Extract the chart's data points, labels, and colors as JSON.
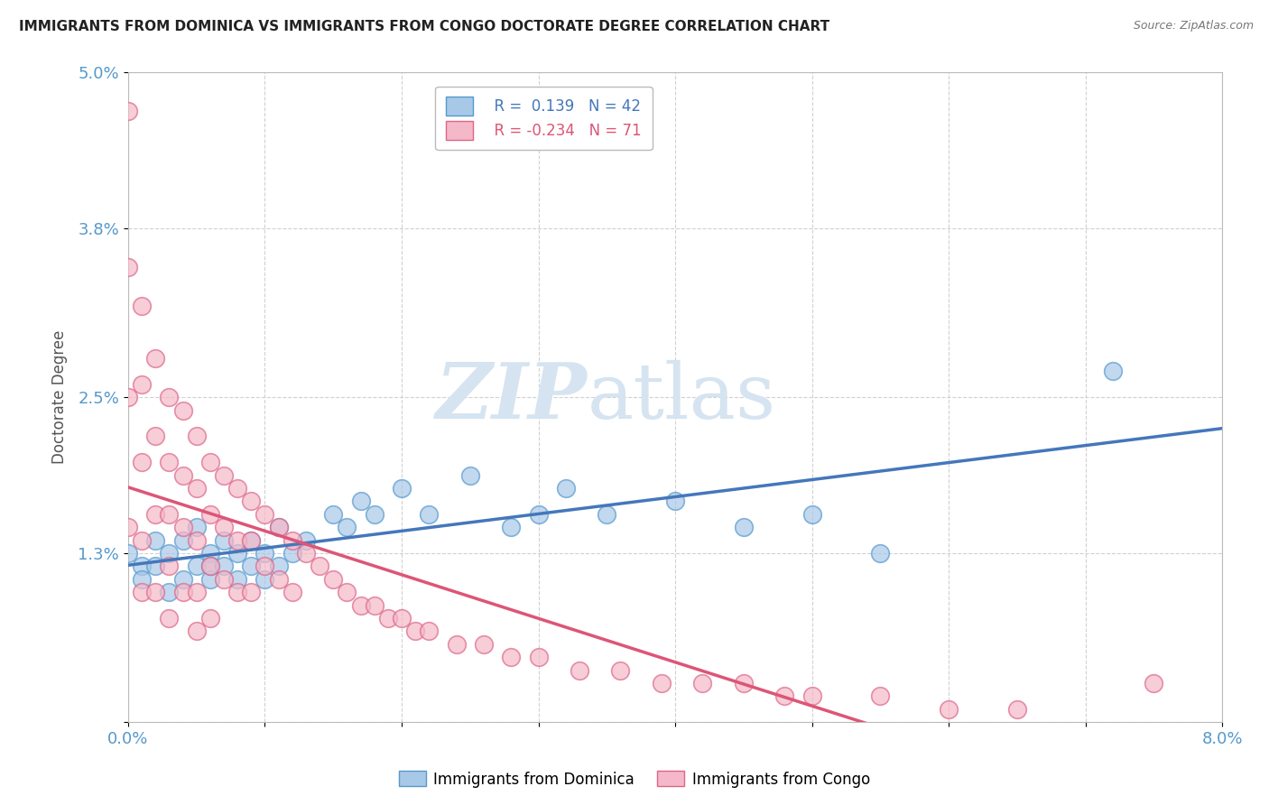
{
  "title": "IMMIGRANTS FROM DOMINICA VS IMMIGRANTS FROM CONGO DOCTORATE DEGREE CORRELATION CHART",
  "source": "Source: ZipAtlas.com",
  "ylabel": "Doctorate Degree",
  "xlim": [
    0.0,
    0.08
  ],
  "ylim": [
    0.0,
    0.05
  ],
  "ytick_vals": [
    0.0,
    0.013,
    0.025,
    0.038,
    0.05
  ],
  "ytick_labels": [
    "",
    "1.3%",
    "2.5%",
    "3.8%",
    "5.0%"
  ],
  "xtick_positions": [
    0.0,
    0.01,
    0.02,
    0.03,
    0.04,
    0.05,
    0.06,
    0.07,
    0.08
  ],
  "xtick_labels": [
    "0.0%",
    "",
    "",
    "",
    "",
    "",
    "",
    "",
    "8.0%"
  ],
  "dominica_R": 0.139,
  "dominica_N": 42,
  "congo_R": -0.234,
  "congo_N": 71,
  "dominica_color": "#a8c8e8",
  "congo_color": "#f5b8c8",
  "dominica_edge_color": "#5599cc",
  "congo_edge_color": "#dd6688",
  "dominica_line_color": "#4477bb",
  "congo_line_color": "#dd5577",
  "background_color": "#ffffff",
  "grid_color": "#cccccc",
  "watermark_color": "#d5e4f0",
  "tick_color": "#5599cc",
  "dominica_x": [
    0.0,
    0.001,
    0.001,
    0.002,
    0.002,
    0.003,
    0.003,
    0.004,
    0.004,
    0.005,
    0.005,
    0.006,
    0.006,
    0.006,
    0.007,
    0.007,
    0.008,
    0.008,
    0.009,
    0.009,
    0.01,
    0.01,
    0.011,
    0.011,
    0.012,
    0.013,
    0.015,
    0.016,
    0.017,
    0.018,
    0.02,
    0.022,
    0.025,
    0.028,
    0.03,
    0.032,
    0.035,
    0.04,
    0.045,
    0.05,
    0.055,
    0.072
  ],
  "dominica_y": [
    0.013,
    0.012,
    0.011,
    0.014,
    0.012,
    0.013,
    0.01,
    0.014,
    0.011,
    0.015,
    0.012,
    0.013,
    0.011,
    0.012,
    0.014,
    0.012,
    0.013,
    0.011,
    0.014,
    0.012,
    0.013,
    0.011,
    0.015,
    0.012,
    0.013,
    0.014,
    0.016,
    0.015,
    0.017,
    0.016,
    0.018,
    0.016,
    0.019,
    0.015,
    0.016,
    0.018,
    0.016,
    0.017,
    0.015,
    0.016,
    0.013,
    0.027
  ],
  "congo_x": [
    0.0,
    0.0,
    0.0,
    0.0,
    0.001,
    0.001,
    0.001,
    0.001,
    0.001,
    0.002,
    0.002,
    0.002,
    0.002,
    0.003,
    0.003,
    0.003,
    0.003,
    0.003,
    0.004,
    0.004,
    0.004,
    0.004,
    0.005,
    0.005,
    0.005,
    0.005,
    0.005,
    0.006,
    0.006,
    0.006,
    0.006,
    0.007,
    0.007,
    0.007,
    0.008,
    0.008,
    0.008,
    0.009,
    0.009,
    0.009,
    0.01,
    0.01,
    0.011,
    0.011,
    0.012,
    0.012,
    0.013,
    0.014,
    0.015,
    0.016,
    0.017,
    0.018,
    0.019,
    0.02,
    0.021,
    0.022,
    0.024,
    0.026,
    0.028,
    0.03,
    0.033,
    0.036,
    0.039,
    0.042,
    0.045,
    0.048,
    0.05,
    0.055,
    0.06,
    0.065,
    0.075
  ],
  "congo_y": [
    0.047,
    0.035,
    0.025,
    0.015,
    0.032,
    0.026,
    0.02,
    0.014,
    0.01,
    0.028,
    0.022,
    0.016,
    0.01,
    0.025,
    0.02,
    0.016,
    0.012,
    0.008,
    0.024,
    0.019,
    0.015,
    0.01,
    0.022,
    0.018,
    0.014,
    0.01,
    0.007,
    0.02,
    0.016,
    0.012,
    0.008,
    0.019,
    0.015,
    0.011,
    0.018,
    0.014,
    0.01,
    0.017,
    0.014,
    0.01,
    0.016,
    0.012,
    0.015,
    0.011,
    0.014,
    0.01,
    0.013,
    0.012,
    0.011,
    0.01,
    0.009,
    0.009,
    0.008,
    0.008,
    0.007,
    0.007,
    0.006,
    0.006,
    0.005,
    0.005,
    0.004,
    0.004,
    0.003,
    0.003,
    0.003,
    0.002,
    0.002,
    0.002,
    0.001,
    0.001,
    0.003
  ]
}
